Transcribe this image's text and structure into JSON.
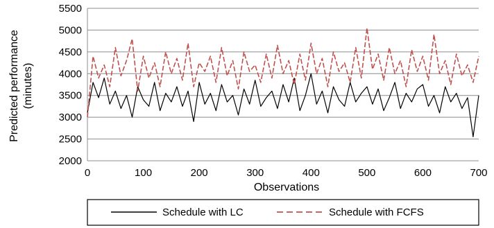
{
  "chart_data": {
    "type": "line",
    "title": "",
    "xlabel": "Observations",
    "ylabel": "Predicted performance (minutes)",
    "ylabel_lines": [
      "Predicted performance",
      "(minutes)"
    ],
    "xlim": [
      0,
      700
    ],
    "ylim": [
      2000,
      5500
    ],
    "xticks": [
      0,
      100,
      200,
      300,
      400,
      500,
      600,
      700
    ],
    "yticks": [
      2000,
      2500,
      3000,
      3500,
      4000,
      4500,
      5000,
      5500
    ],
    "grid": "horizontal",
    "legend_position": "bottom",
    "series": [
      {
        "name": "Schedule with LC",
        "color": "#000000",
        "style": "solid",
        "x": [
          0,
          10,
          20,
          30,
          40,
          50,
          60,
          70,
          80,
          90,
          100,
          110,
          120,
          130,
          140,
          150,
          160,
          170,
          180,
          190,
          200,
          210,
          220,
          230,
          240,
          250,
          260,
          270,
          280,
          290,
          300,
          310,
          320,
          330,
          340,
          350,
          360,
          370,
          380,
          390,
          400,
          410,
          420,
          430,
          440,
          450,
          460,
          470,
          480,
          490,
          500,
          510,
          520,
          530,
          540,
          550,
          560,
          570,
          580,
          590,
          600,
          610,
          620,
          630,
          640,
          650,
          660,
          670,
          680,
          690,
          700
        ],
        "y": [
          3100,
          3800,
          3450,
          3900,
          3300,
          3600,
          3200,
          3500,
          3000,
          3700,
          3400,
          3250,
          3800,
          3150,
          3550,
          3350,
          3700,
          3250,
          3600,
          2900,
          3800,
          3300,
          3550,
          3150,
          3750,
          3350,
          3500,
          3050,
          3650,
          3300,
          3850,
          3250,
          3450,
          3600,
          3200,
          3750,
          3350,
          3900,
          3150,
          3500,
          4000,
          3300,
          3600,
          3100,
          3700,
          3400,
          3250,
          3800,
          3350,
          3550,
          3700,
          3300,
          3650,
          3150,
          3450,
          3800,
          3200,
          3550,
          3350,
          3650,
          3750,
          3250,
          3500,
          3100,
          3700,
          3350,
          3550,
          3200,
          3450,
          2550,
          3500
        ]
      },
      {
        "name": "Schedule with FCFS",
        "color": "#c0504d",
        "style": "dashed",
        "x": [
          0,
          10,
          20,
          30,
          40,
          50,
          60,
          70,
          80,
          90,
          100,
          110,
          120,
          130,
          140,
          150,
          160,
          170,
          180,
          190,
          200,
          210,
          220,
          230,
          240,
          250,
          260,
          270,
          280,
          290,
          300,
          310,
          320,
          330,
          340,
          350,
          360,
          370,
          380,
          390,
          400,
          410,
          420,
          430,
          440,
          450,
          460,
          470,
          480,
          490,
          500,
          510,
          520,
          530,
          540,
          550,
          560,
          570,
          580,
          590,
          600,
          610,
          620,
          630,
          640,
          650,
          660,
          670,
          680,
          690,
          700
        ],
        "y": [
          3000,
          4400,
          3900,
          4200,
          3700,
          4600,
          3950,
          4300,
          4800,
          3600,
          4400,
          3900,
          4250,
          3700,
          4500,
          4000,
          4350,
          3850,
          4700,
          3700,
          4250,
          4050,
          4400,
          3800,
          4600,
          3950,
          4300,
          3650,
          4500,
          4050,
          4200,
          3800,
          4450,
          3900,
          4650,
          4000,
          4300,
          3750,
          4450,
          3850,
          4700,
          4000,
          4350,
          3700,
          4500,
          4050,
          4250,
          3800,
          4600,
          3900,
          5050,
          4100,
          4450,
          3850,
          4600,
          4000,
          4300,
          3700,
          4550,
          4050,
          4400,
          3850,
          4900,
          4000,
          4300,
          3750,
          4450,
          3950,
          4200,
          3800,
          4400
        ]
      }
    ]
  }
}
